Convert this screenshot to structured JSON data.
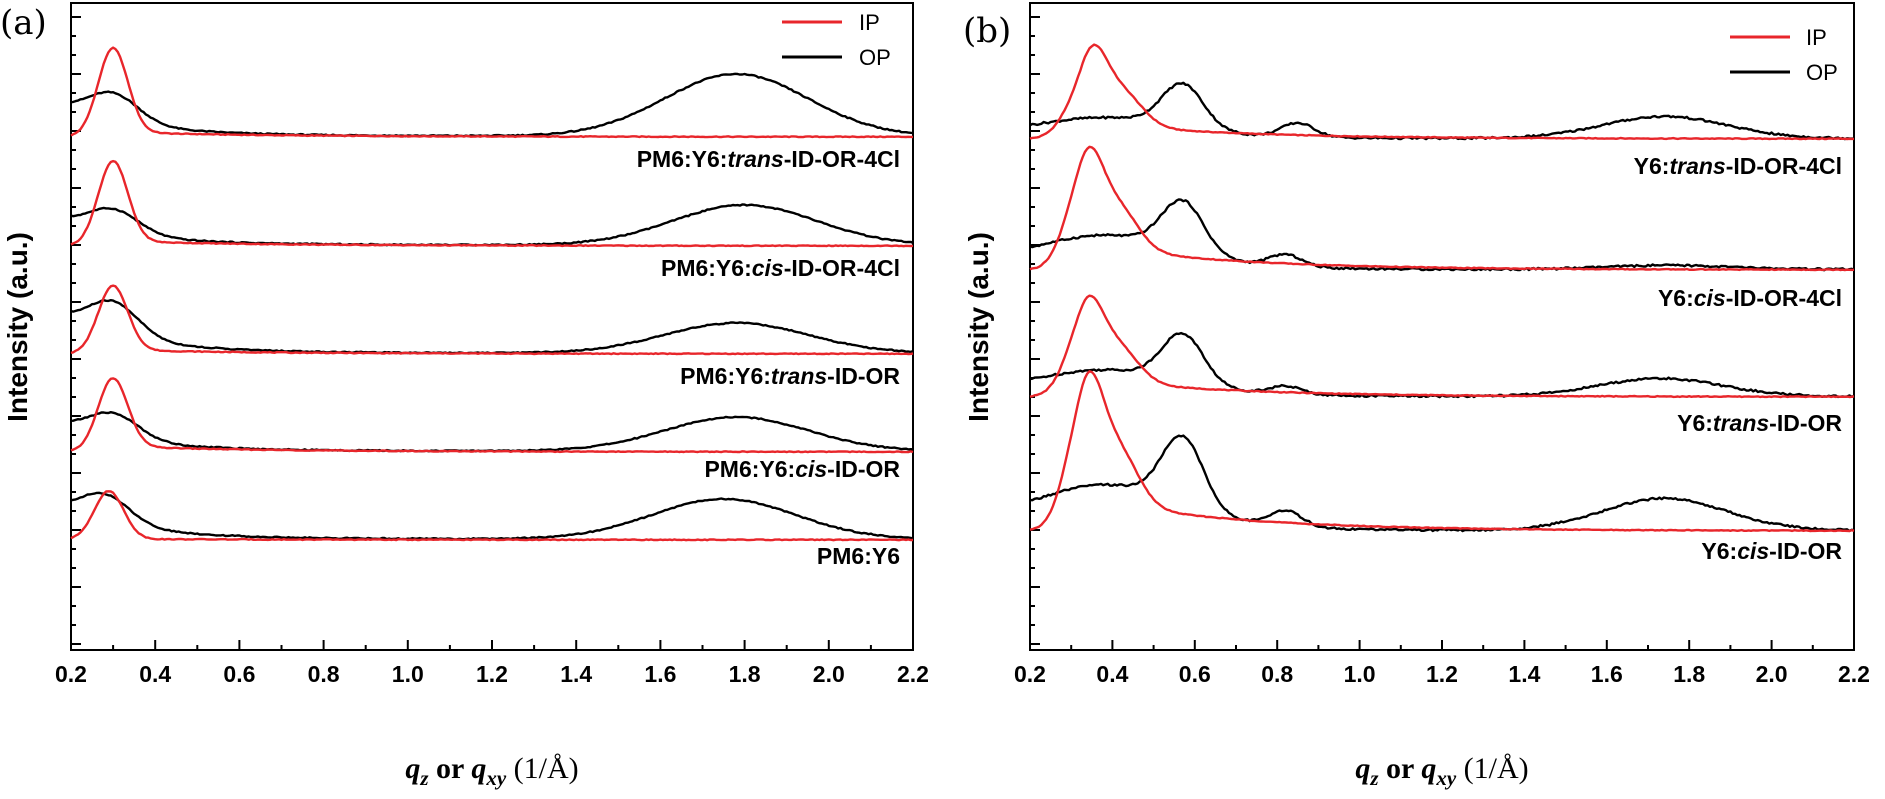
{
  "chart_data": [
    {
      "type": "line",
      "panel_label": "(a)",
      "xlim": [
        0.2,
        2.2
      ],
      "xticks": [
        "0.2",
        "0.4",
        "0.6",
        "0.8",
        "1.0",
        "1.2",
        "1.4",
        "1.6",
        "1.8",
        "2.0",
        "2.2"
      ],
      "xlabel": {
        "q1": "q",
        "s1": "z",
        "mid": " or ",
        "q2": "q",
        "s2": "xy",
        "unit": " (1/Å)"
      },
      "ylabel": "Intensity (a.u.)",
      "legend": {
        "position": "top-right",
        "entries": [
          {
            "name": "IP",
            "color": "#e8262b"
          },
          {
            "name": "OP",
            "color": "#000000"
          }
        ]
      },
      "samples": [
        {
          "label_plain": "PM6:Y6:",
          "label_italic": "trans",
          "label_rest": "-ID-OR-4Cl",
          "ip": {
            "peak_q": 0.3,
            "peak_height": 2.1,
            "tail_at_0_5": 0.12
          },
          "op": {
            "start_height": 1.25,
            "peak_q": 1.78,
            "peak_height": 1.55,
            "shoulder_q": 0.3
          }
        },
        {
          "label_plain": "PM6:Y6:",
          "label_italic": "cis",
          "label_rest": "-ID-OR-4Cl",
          "ip": {
            "peak_q": 0.3,
            "peak_height": 2.0,
            "tail_at_0_5": 0.12
          },
          "op": {
            "start_height": 1.05,
            "peak_q": 1.8,
            "peak_height": 1.0,
            "shoulder_q": 0.3
          }
        },
        {
          "label_plain": "PM6:Y6:",
          "label_italic": "trans",
          "label_rest": "-ID-OR",
          "ip": {
            "peak_q": 0.3,
            "peak_height": 1.6,
            "tail_at_0_5": 0.1
          },
          "op": {
            "start_height": 1.5,
            "peak_q": 1.78,
            "peak_height": 0.75,
            "shoulder_q": 0.3
          }
        },
        {
          "label_plain": "PM6:Y6:",
          "label_italic": "cis",
          "label_rest": "-ID-OR",
          "ip": {
            "peak_q": 0.3,
            "peak_height": 1.7,
            "tail_at_0_5": 0.14
          },
          "op": {
            "start_height": 1.1,
            "peak_q": 1.78,
            "peak_height": 0.85,
            "shoulder_q": 0.3
          }
        },
        {
          "label_plain": "PM6:Y6",
          "label_italic": "",
          "label_rest": "",
          "ip": {
            "peak_q": 0.29,
            "peak_height": 1.2,
            "tail_at_0_5": 0.02
          },
          "op": {
            "start_height": 1.25,
            "peak_q": 1.75,
            "peak_height": 1.0,
            "shoulder_q": 0.28
          }
        }
      ]
    },
    {
      "type": "line",
      "panel_label": "(b)",
      "xlim": [
        0.2,
        2.2
      ],
      "xticks": [
        "0.2",
        "0.4",
        "0.6",
        "0.8",
        "1.0",
        "1.2",
        "1.4",
        "1.6",
        "1.8",
        "2.0",
        "2.2"
      ],
      "xlabel": {
        "q1": "q",
        "s1": "z",
        "mid": " or ",
        "q2": "q",
        "s2": "xy",
        "unit": " (1/Å)"
      },
      "ylabel": "Intensity (a.u.)",
      "legend": {
        "position": "top-right",
        "entries": [
          {
            "name": "IP",
            "color": "#e8262b"
          },
          {
            "name": "OP",
            "color": "#000000"
          }
        ]
      },
      "samples": [
        {
          "label_plain": "Y6:",
          "label_italic": "trans",
          "label_rest": "-ID-OR-4Cl",
          "ip": {
            "peak_q": 0.35,
            "peak_height": 1.6,
            "tail_at_0_5": 0.45
          },
          "op": {
            "start_height": 0.55,
            "peak_q": 0.57,
            "peak_height": 1.4,
            "extra_peak_q": 0.85,
            "extra_peak_height": 0.35,
            "high_q_peak": 1.74,
            "high_q_height": 0.55
          }
        },
        {
          "label_plain": "Y6:",
          "label_italic": "cis",
          "label_rest": "-ID-OR-4Cl",
          "ip": {
            "peak_q": 0.34,
            "peak_height": 2.0,
            "tail_at_0_5": 0.7
          },
          "op": {
            "start_height": 0.9,
            "peak_q": 0.57,
            "peak_height": 1.6,
            "extra_peak_q": 0.82,
            "extra_peak_height": 0.3,
            "high_q_peak": 1.75,
            "high_q_height": 0.1
          }
        },
        {
          "label_plain": "Y6:",
          "label_italic": "trans",
          "label_rest": "-ID-OR",
          "ip": {
            "peak_q": 0.34,
            "peak_height": 1.7,
            "tail_at_0_5": 0.5
          },
          "op": {
            "start_height": 0.7,
            "peak_q": 0.57,
            "peak_height": 1.55,
            "extra_peak_q": 0.82,
            "extra_peak_height": 0.2,
            "high_q_peak": 1.73,
            "high_q_height": 0.45
          }
        },
        {
          "label_plain": "Y6:",
          "label_italic": "cis",
          "label_rest": "-ID-OR",
          "ip": {
            "peak_q": 0.34,
            "peak_height": 2.6,
            "tail_at_0_5": 0.9
          },
          "op": {
            "start_height": 1.2,
            "peak_q": 0.57,
            "peak_height": 2.2,
            "extra_peak_q": 0.82,
            "extra_peak_height": 0.4,
            "high_q_peak": 1.74,
            "high_q_height": 0.8
          }
        }
      ]
    }
  ]
}
